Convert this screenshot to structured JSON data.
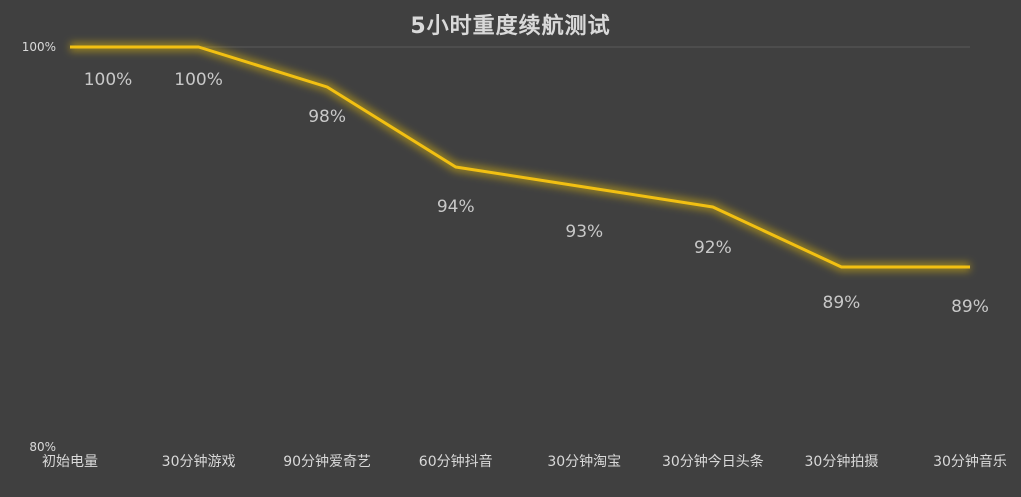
{
  "chart_data": {
    "type": "line",
    "title": "5小时重度续航测试",
    "categories": [
      "初始电量",
      "30分钟游戏",
      "90分钟爱奇艺",
      "60分钟抖音",
      "30分钟淘宝",
      "30分钟今日头条",
      "30分钟拍摄",
      "30分钟音乐"
    ],
    "series": [
      {
        "values": [
          100,
          100,
          98,
          94,
          93,
          92,
          89,
          89
        ],
        "data_labels": [
          "100%",
          "100%",
          "98%",
          "94%",
          "93%",
          "92%",
          "89%",
          "89%"
        ]
      }
    ],
    "y_tick_labels": [
      "80%",
      "100%"
    ],
    "ylim": [
      80,
      100
    ],
    "grid": false,
    "legend": "none",
    "line_color": "#f2c012",
    "glow_color": "#ffd000",
    "background_color": "#404040",
    "text_color": "#d9d9d9"
  }
}
